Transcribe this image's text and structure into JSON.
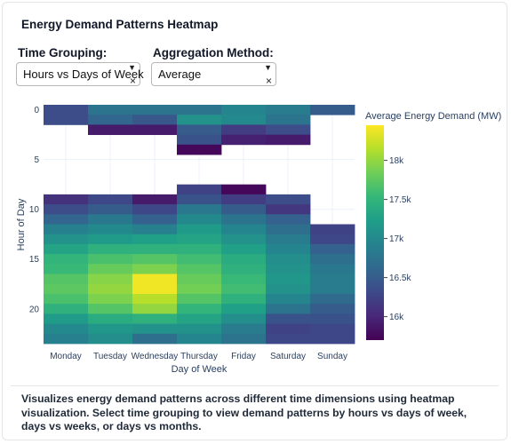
{
  "app": {
    "title": "Energy Demand Patterns Heatmap"
  },
  "controls": {
    "grouping": {
      "label": "Time Grouping:",
      "value": "Hours vs Days of Week"
    },
    "aggregation": {
      "label": "Aggregation Method:",
      "value": "Average"
    },
    "dropdown_icon": "caret-down-icon",
    "clear_icon": "clear-x-icon"
  },
  "chart_data": {
    "type": "heatmap",
    "title": "",
    "xlabel": "Day of Week",
    "ylabel": "Hour of Day",
    "colorbar_title": "Average Energy Demand (MW)",
    "colorscale": "Viridis",
    "zlim": [
      15700,
      18450
    ],
    "colorbar_ticks": [
      "16k",
      "16.5k",
      "17k",
      "17.5k",
      "18k"
    ],
    "colorbar_tick_values": [
      16000,
      16500,
      17000,
      17500,
      18000
    ],
    "y_ticks": [
      "0",
      "5",
      "10",
      "15",
      "20"
    ],
    "y_tick_values": [
      0,
      5,
      10,
      15,
      20
    ],
    "x": [
      "Monday",
      "Tuesday",
      "Wednesday",
      "Thursday",
      "Friday",
      "Saturday",
      "Sunday"
    ],
    "y": [
      0,
      1,
      2,
      3,
      4,
      5,
      6,
      7,
      8,
      9,
      10,
      11,
      12,
      13,
      14,
      15,
      16,
      17,
      18,
      19,
      20,
      21,
      22,
      23
    ],
    "z": [
      [
        16350,
        16750,
        16750,
        16750,
        16950,
        16850,
        16500
      ],
      [
        16350,
        16600,
        16450,
        17100,
        17000,
        16750,
        null
      ],
      [
        null,
        15900,
        15900,
        16500,
        16200,
        16350,
        null
      ],
      [
        null,
        null,
        null,
        16400,
        15950,
        15900,
        null
      ],
      [
        null,
        null,
        null,
        15750,
        null,
        null,
        null
      ],
      [
        null,
        null,
        null,
        null,
        null,
        null,
        null
      ],
      [
        null,
        null,
        null,
        null,
        null,
        null,
        null
      ],
      [
        null,
        null,
        null,
        null,
        null,
        null,
        null
      ],
      [
        null,
        null,
        null,
        16250,
        15750,
        null,
        null
      ],
      [
        16100,
        16300,
        15900,
        16400,
        16200,
        16350,
        null
      ],
      [
        16350,
        16500,
        16300,
        16800,
        16500,
        16150,
        null
      ],
      [
        16600,
        16800,
        16550,
        17000,
        16750,
        16550,
        null
      ],
      [
        16900,
        17000,
        16900,
        17200,
        16950,
        16700,
        16250
      ],
      [
        17100,
        17200,
        17250,
        17300,
        17100,
        16850,
        16300
      ],
      [
        17300,
        17450,
        17450,
        17450,
        17250,
        16950,
        16550
      ],
      [
        17500,
        17650,
        17700,
        17600,
        17400,
        17050,
        16700
      ],
      [
        17550,
        17800,
        17900,
        17700,
        17450,
        17100,
        16800
      ],
      [
        17700,
        17950,
        18400,
        17800,
        17550,
        17150,
        16850
      ],
      [
        17750,
        18000,
        18400,
        17850,
        17600,
        17100,
        16850
      ],
      [
        17650,
        17900,
        18150,
        17700,
        17450,
        16950,
        16650
      ],
      [
        17450,
        17700,
        18000,
        17500,
        17250,
        16750,
        16500
      ],
      [
        17200,
        17400,
        17450,
        17300,
        17050,
        16400,
        16400
      ],
      [
        17000,
        17150,
        17100,
        17100,
        16850,
        16250,
        16300
      ],
      [
        16900,
        17050,
        16700,
        16950,
        16750,
        16300,
        16300
      ]
    ]
  },
  "description": "Visualizes energy demand patterns across different time dimensions using heatmap visualization. Select time grouping to view demand patterns by hours vs days of week, days vs weeks, or days vs months."
}
